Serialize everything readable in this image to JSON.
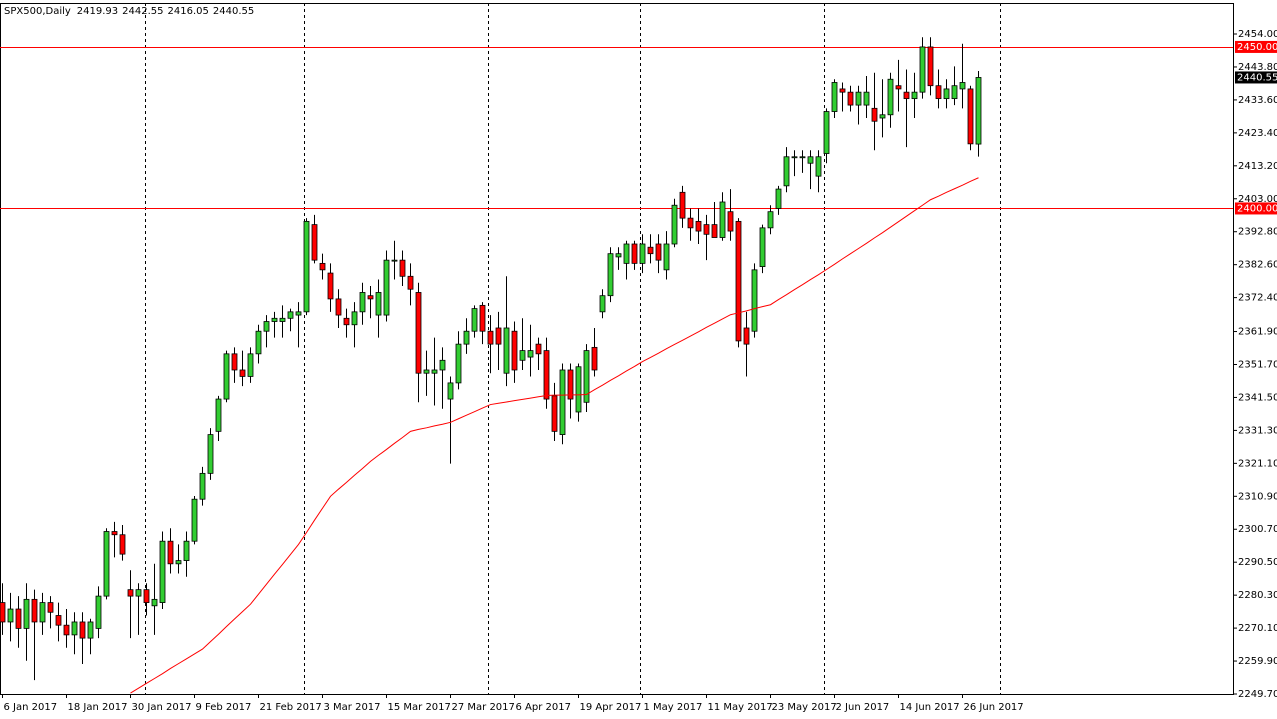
{
  "chart_data": {
    "type": "candlestick",
    "title": "SPX500,Daily",
    "categories": [
      "6 Jan 2017",
      null,
      null,
      null,
      null,
      null,
      null,
      null,
      "18 Jan 2017",
      null,
      null,
      null,
      null,
      null,
      null,
      null,
      "30 Jan 2017",
      null,
      null,
      null,
      null,
      null,
      null,
      null,
      "9 Feb 2017",
      null,
      null,
      null,
      null,
      null,
      null,
      null,
      "21 Feb 2017",
      null,
      null,
      null,
      null,
      null,
      null,
      null,
      "3 Mar 2017",
      null,
      null,
      null,
      null,
      null,
      null,
      null,
      "15 Mar 2017",
      null,
      null,
      null,
      null,
      null,
      null,
      null,
      "27 Mar 2017",
      null,
      null,
      null,
      null,
      null,
      null,
      null,
      "6 Apr 2017",
      null,
      null,
      null,
      null,
      null,
      null,
      null,
      "19 Apr 2017",
      null,
      null,
      null,
      null,
      null,
      null,
      null,
      "1 May 2017",
      null,
      null,
      null,
      null,
      null,
      null,
      null,
      "11 May 2017",
      null,
      null,
      null,
      null,
      null,
      null,
      null,
      "23 May 2017",
      null,
      null,
      null,
      null,
      null,
      null,
      null,
      "2 Jun 2017",
      null,
      null,
      null,
      null,
      null,
      null,
      null,
      "14 Jun 2017",
      null,
      null,
      null,
      null,
      null,
      null,
      null,
      "26 Jun 2017",
      null,
      null
    ],
    "open": [
      2278,
      2272,
      2276,
      2270,
      2279,
      2272,
      2278,
      2274,
      2271,
      2268,
      2272,
      2267,
      2270,
      2280,
      2300,
      2299,
      2282,
      2280,
      2282,
      2277,
      2278,
      2297,
      2290,
      2291,
      2297,
      2310,
      2318,
      2331,
      2341,
      2355,
      2350,
      2348,
      2355,
      2362,
      2365,
      2365,
      2366,
      2367,
      2368,
      2395,
      2383,
      2380,
      2372,
      2366,
      2364,
      2368,
      2373,
      2367,
      2367,
      2384,
      2384,
      2379,
      2374,
      2349,
      2349,
      2350,
      2341,
      2346,
      2358,
      2362,
      2370,
      2362,
      2363,
      2349,
      2362,
      2353,
      2354,
      2358,
      2356,
      2342,
      2330,
      2350,
      2337,
      2340,
      2357,
      2368,
      2373,
      2385,
      2383,
      2389,
      2383,
      2388,
      2389,
      2381,
      2389,
      2405,
      2397,
      2396,
      2395,
      2395,
      2391,
      2399,
      2396,
      2363,
      2362,
      2382,
      2394,
      2400,
      2407,
      2416,
      2416,
      2414,
      2410,
      2417,
      2430,
      2437,
      2436,
      2432,
      2432,
      2431,
      2428,
      2429,
      2438,
      2436,
      2434,
      2436,
      2450,
      2438,
      2434,
      2434,
      2437,
      2437,
      2419.93
    ],
    "high": [
      2284,
      2281,
      2280,
      2284,
      2282,
      2281,
      2280,
      2278,
      2276,
      2275,
      2275,
      2273,
      2283,
      2301,
      2303,
      2302,
      2288,
      2284,
      2284,
      2290,
      2300,
      2301,
      2296,
      2300,
      2311,
      2320,
      2332,
      2342,
      2356,
      2357,
      2356,
      2357,
      2364,
      2367,
      2368,
      2370,
      2369,
      2371,
      2397,
      2398,
      2386,
      2383,
      2375,
      2369,
      2371,
      2377,
      2376,
      2378,
      2387,
      2390,
      2387,
      2383,
      2377,
      2356,
      2360,
      2357,
      2348,
      2362,
      2366,
      2370,
      2371,
      2367,
      2368,
      2379,
      2365,
      2366,
      2364,
      2360,
      2360,
      2346,
      2352,
      2352,
      2352,
      2358,
      2363,
      2375,
      2388,
      2388,
      2390,
      2390,
      2392,
      2392,
      2392,
      2393,
      2403,
      2407,
      2400,
      2400,
      2398,
      2402,
      2405,
      2406,
      2397,
      2368,
      2383,
      2395,
      2401,
      2407,
      2419,
      2418,
      2418,
      2418,
      2418,
      2431,
      2440,
      2439,
      2438,
      2438,
      2441,
      2442,
      2440,
      2442,
      2446,
      2443,
      2442,
      2453,
      2453,
      2443,
      2440,
      2444,
      2451,
      2438,
      2442.55
    ],
    "low": [
      2268,
      2266,
      2264,
      2260,
      2254,
      2268,
      2270,
      2266,
      2264,
      2262,
      2259,
      2262,
      2267,
      2279,
      2292,
      2291,
      2267,
      2268,
      2274,
      2268,
      2276,
      2287,
      2287,
      2286,
      2296,
      2308,
      2316,
      2328,
      2340,
      2346,
      2345,
      2346,
      2352,
      2357,
      2360,
      2360,
      2362,
      2357,
      2367,
      2383,
      2378,
      2368,
      2363,
      2360,
      2357,
      2364,
      2366,
      2360,
      2365,
      2378,
      2376,
      2370,
      2340,
      2342,
      2339,
      2338,
      2321,
      2344,
      2355,
      2360,
      2358,
      2349,
      2350,
      2345,
      2346,
      2350,
      2348,
      2350,
      2338,
      2328,
      2327,
      2335,
      2334,
      2337,
      2348,
      2366,
      2371,
      2381,
      2378,
      2381,
      2380,
      2383,
      2380,
      2378,
      2388,
      2394,
      2390,
      2389,
      2384,
      2391,
      2390,
      2390,
      2357,
      2348,
      2360,
      2380,
      2392,
      2398,
      2405,
      2410,
      2411,
      2406,
      2405,
      2414,
      2428,
      2430,
      2430,
      2426,
      2428,
      2418,
      2422,
      2425,
      2430,
      2419,
      2428,
      2434,
      2435,
      2431,
      2431,
      2432,
      2431,
      2418,
      2416.05
    ],
    "close": [
      2272,
      2276,
      2270,
      2279,
      2272,
      2278,
      2275,
      2271,
      2268,
      2272,
      2267,
      2272,
      2280,
      2300,
      2299,
      2293,
      2280,
      2282,
      2278,
      2279,
      2297,
      2290,
      2291,
      2297,
      2310,
      2318,
      2330,
      2341,
      2355,
      2350,
      2348,
      2355,
      2362,
      2365,
      2366,
      2366,
      2368,
      2368,
      2396,
      2384,
      2381,
      2372,
      2367,
      2364,
      2368,
      2374,
      2372,
      2374,
      2384,
      2384,
      2379,
      2375,
      2349,
      2350,
      2350,
      2353,
      2346,
      2358,
      2362,
      2369,
      2362,
      2358,
      2358,
      2363,
      2350,
      2356,
      2356,
      2355,
      2341,
      2331,
      2350,
      2341,
      2351,
      2356,
      2350,
      2373,
      2386,
      2386,
      2389,
      2383,
      2389,
      2386,
      2384,
      2389,
      2401,
      2397,
      2394,
      2393,
      2392,
      2391,
      2402,
      2393,
      2359,
      2358,
      2381,
      2394,
      2399,
      2406,
      2416,
      2416,
      2416,
      2416,
      2416,
      2430,
      2439,
      2436,
      2432,
      2436,
      2436,
      2427,
      2429,
      2440,
      2437,
      2434,
      2436,
      2450,
      2438,
      2434,
      2437,
      2438,
      2439,
      2420,
      2440.55
    ],
    "ma": {
      "color": "#ff0000",
      "values": [
        null,
        null,
        null,
        null,
        null,
        null,
        null,
        null,
        null,
        null,
        null,
        null,
        null,
        null,
        null,
        null,
        2250.0,
        2251.5,
        2253.0,
        2254.5,
        2256.0,
        2257.6,
        2259.1,
        2260.6,
        2262.1,
        2263.6,
        2265.9,
        2268.2,
        2270.6,
        2272.9,
        2275.2,
        2277.5,
        2280.6,
        2283.7,
        2286.8,
        2289.8,
        2292.9,
        2296.0,
        2299.7,
        2303.5,
        2307.2,
        2310.9,
        2313.1,
        2315.2,
        2317.4,
        2319.5,
        2321.7,
        2323.6,
        2325.4,
        2327.3,
        2329.1,
        2331.0,
        2331.6,
        2332.1,
        2332.7,
        2333.2,
        2333.8,
        2334.9,
        2336.0,
        2337.1,
        2338.2,
        2339.3,
        2339.7,
        2340.1,
        2340.5,
        2340.9,
        2341.3,
        2341.7,
        2342.1,
        2342.2,
        2342.2,
        2342.3,
        2342.3,
        2342.4,
        2343.9,
        2345.3,
        2346.8,
        2348.2,
        2349.7,
        2351.1,
        2352.6,
        2353.9,
        2355.2,
        2356.6,
        2357.9,
        2359.2,
        2360.5,
        2361.8,
        2363.2,
        2364.5,
        2365.8,
        2367.1,
        2367.7,
        2368.3,
        2369.0,
        2369.6,
        2370.2,
        2371.8,
        2373.3,
        2374.9,
        2376.4,
        2378.0,
        2379.5,
        2381.1,
        2382.7,
        2384.4,
        2386.0,
        2387.6,
        2389.2,
        2390.9,
        2392.5,
        2394.2,
        2395.9,
        2397.6,
        2399.3,
        2401.0,
        2402.7,
        2403.8,
        2405.0,
        2406.1,
        2407.2,
        2408.4,
        2409.5
      ]
    },
    "up_color": "#32cd32",
    "down_color": "#ff0000",
    "levels": [
      {
        "value": 2450,
        "label": "2450.00"
      },
      {
        "value": 2400,
        "label": "2400.00"
      }
    ],
    "level_color": "#ff0000",
    "ylim": [
      2249.7,
      2463.6
    ],
    "yticks": [
      {
        "value": 2454.0,
        "label": "2454.00"
      },
      {
        "value": 2443.8,
        "label": "2443.80"
      },
      {
        "value": 2433.6,
        "label": "2433.60"
      },
      {
        "value": 2423.4,
        "label": "2423.40"
      },
      {
        "value": 2413.2,
        "label": "2413.20"
      },
      {
        "value": 2403.0,
        "label": "2403.00"
      },
      {
        "value": 2392.8,
        "label": "2392.80"
      },
      {
        "value": 2382.6,
        "label": "2382.60"
      },
      {
        "value": 2372.4,
        "label": "2372.40"
      },
      {
        "value": 2361.9,
        "label": "2361.90"
      },
      {
        "value": 2351.7,
        "label": "2351.70"
      },
      {
        "value": 2341.5,
        "label": "2341.50"
      },
      {
        "value": 2331.3,
        "label": "2331.30"
      },
      {
        "value": 2321.1,
        "label": "2321.10"
      },
      {
        "value": 2310.9,
        "label": "2310.90"
      },
      {
        "value": 2300.7,
        "label": "2300.70"
      },
      {
        "value": 2290.5,
        "label": "2290.50"
      },
      {
        "value": 2280.3,
        "label": "2280.30"
      },
      {
        "value": 2270.1,
        "label": "2270.10"
      },
      {
        "value": 2259.9,
        "label": "2259.90"
      },
      {
        "value": 2249.7,
        "label": "2249.70"
      }
    ]
  }
}
